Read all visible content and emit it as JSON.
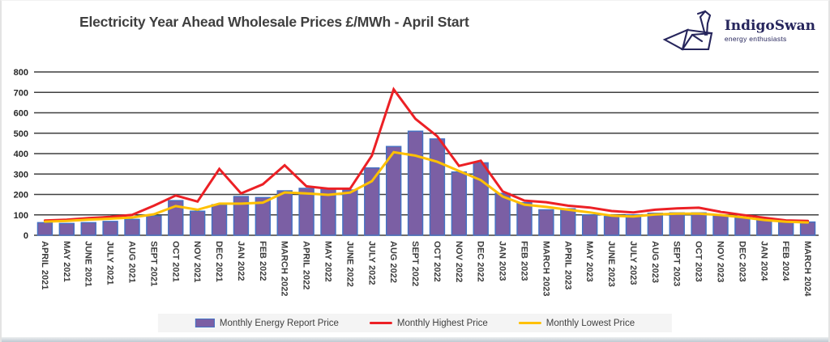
{
  "header": {
    "title": "Electricity Year Ahead Wholesale Prices £/MWh - April Start",
    "logo": {
      "name": "IndigoSwan",
      "tagline": "energy enthusiasts",
      "color": "#26255c"
    }
  },
  "chart_data": {
    "type": "bar",
    "title": "Electricity Year Ahead Wholesale Prices £/MWh - April Start",
    "xlabel": "",
    "ylabel": "",
    "ylim": [
      0,
      800
    ],
    "ytick_step": 100,
    "grid": true,
    "legend_position": "bottom",
    "categories": [
      "APRIL 2021",
      "MAY 2021",
      "JUNE 2021",
      "JULY 2021",
      "AUG 2021",
      "SEPT 2021",
      "OCT 2021",
      "NOV 2021",
      "DEC 2021",
      "JAN 2022",
      "FEB 2022",
      "MARCH 2022",
      "APRIL 2022",
      "MAY 2022",
      "JUNE 2022",
      "JULY 2022",
      "AUG 2022",
      "SEPT 2022",
      "OCT 2022",
      "NOV 2022",
      "DEC 2022",
      "JAN 2023",
      "FEB 2023",
      "MARCH 2023",
      "APRIL 2023",
      "MAY 2023",
      "JUNE 2023",
      "JULY 2023",
      "AUG 2023",
      "SEPT 2023",
      "OCT 2023",
      "NOV 2023",
      "DEC 2023",
      "JAN 2024",
      "FEB 2024",
      "MARCH 2024"
    ],
    "series": [
      {
        "name": "Monthly Energy Report Price",
        "type": "bar",
        "color": "#7b5fa4",
        "border_color": "#4472c4",
        "values": [
          62,
          58,
          62,
          68,
          78,
          95,
          170,
          118,
          150,
          190,
          185,
          218,
          230,
          225,
          222,
          330,
          435,
          510,
          472,
          310,
          355,
          205,
          160,
          125,
          130,
          100,
          92,
          100,
          108,
          110,
          110,
          100,
          85,
          80,
          72,
          65
        ]
      },
      {
        "name": "Monthly Highest Price",
        "type": "line",
        "color": "#ec2025",
        "values": [
          72,
          76,
          84,
          90,
          100,
          145,
          195,
          165,
          325,
          205,
          250,
          343,
          240,
          228,
          228,
          390,
          715,
          570,
          485,
          340,
          365,
          215,
          170,
          162,
          145,
          136,
          119,
          112,
          125,
          132,
          135,
          115,
          100,
          86,
          73,
          70
        ]
      },
      {
        "name": "Monthly Lowest Price",
        "type": "line",
        "color": "#ffc000",
        "values": [
          67,
          70,
          77,
          81,
          87,
          103,
          143,
          125,
          155,
          155,
          160,
          210,
          205,
          198,
          209,
          265,
          407,
          390,
          360,
          315,
          270,
          190,
          150,
          139,
          125,
          112,
          96,
          92,
          102,
          106,
          106,
          99,
          88,
          75,
          66,
          63
        ]
      }
    ]
  },
  "style": {
    "gridline_color": "#3f3f3f",
    "axis_label_color": "#262626",
    "legend_bg": "#f4f4f4"
  }
}
